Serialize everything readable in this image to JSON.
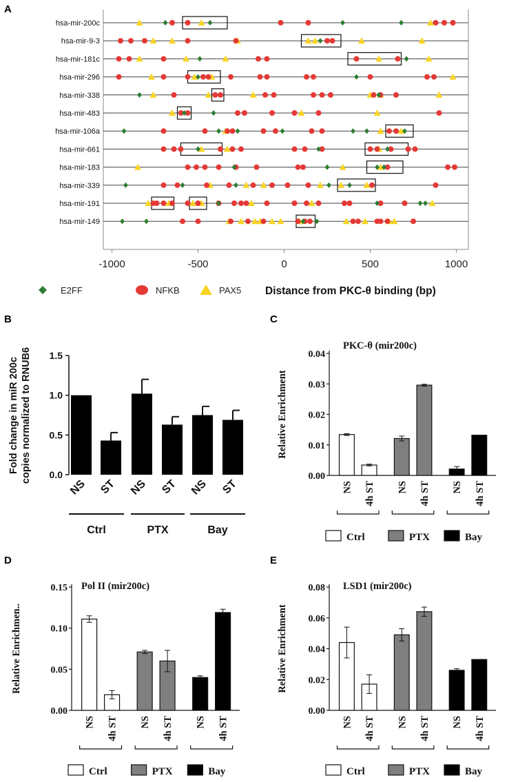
{
  "panels": {
    "A": "A",
    "B": "B",
    "C": "C",
    "D": "D",
    "E": "E"
  },
  "colors": {
    "E2FF": "#2e7d32",
    "NFKB": "#e53935",
    "PAX5": "#f9d423",
    "bar": "#000000",
    "Ctrl": "#ffffff",
    "PTX": "#7f7f7f",
    "Bay": "#000000"
  },
  "chart_data": [
    {
      "panel": "A",
      "type": "scatter",
      "xlabel": "Distance from PKC-θ binding (bp)",
      "xlim": [
        -1050,
        1070
      ],
      "xticks": [
        -1000,
        -500,
        0,
        500,
        1000
      ],
      "xtick_labels": [
        "-1000",
        "-500",
        "0",
        "500",
        "1000"
      ],
      "legend": [
        "E2FF",
        "NFKB",
        "PAX5"
      ],
      "rows": [
        {
          "name": "hsa-mir-200c",
          "E2FF": [
            -690,
            -430,
            340,
            680
          ],
          "NFKB": [
            -650,
            -560,
            -20,
            140,
            880,
            930,
            980
          ],
          "PAX5": [
            -840,
            -480,
            850
          ],
          "boxes": [
            [
              -590,
              -330
            ]
          ]
        },
        {
          "name": "hsa-mir-9-3",
          "E2FF": [
            210
          ],
          "NFKB": [
            -950,
            -890,
            -810,
            -560,
            -280,
            250,
            280
          ],
          "PAX5": [
            -760,
            -650,
            -270,
            140,
            180,
            450,
            800
          ],
          "boxes": [
            [
              100,
              330
            ]
          ]
        },
        {
          "name": "hsa-mir-181c",
          "E2FF": [
            -490,
            710
          ],
          "NFKB": [
            -960,
            -900,
            -700,
            -150,
            -100,
            420,
            660
          ],
          "PAX5": [
            -840,
            -570,
            -340,
            550,
            840
          ],
          "boxes": [
            [
              370,
              680
            ]
          ]
        },
        {
          "name": "hsa-mir-296",
          "E2FF": [
            -500,
            420
          ],
          "NFKB": [
            -960,
            -700,
            -560,
            -470,
            -440,
            -310,
            -140,
            -100,
            130,
            170,
            500,
            830,
            870
          ],
          "PAX5": [
            -770,
            -520,
            -420,
            980
          ],
          "boxes": [
            [
              -560,
              -370
            ]
          ]
        },
        {
          "name": "hsa-mir-338",
          "E2FF": [
            -840,
            550
          ],
          "NFKB": [
            -640,
            -400,
            -370,
            -110,
            -60,
            170,
            220,
            270,
            520,
            560,
            650
          ],
          "PAX5": [
            -760,
            -440,
            -180,
            500,
            560,
            900
          ],
          "boxes": [
            [
              -420,
              -350
            ]
          ]
        },
        {
          "name": "hsa-mir-483",
          "E2FF": [
            -580,
            -410
          ],
          "NFKB": [
            -600,
            -560,
            -270,
            -230,
            -70,
            60,
            200,
            900
          ],
          "PAX5": [
            -650,
            100,
            540
          ],
          "boxes": [
            [
              -620,
              -540
            ]
          ]
        },
        {
          "name": "hsa-mir-106a",
          "E2FF": [
            -930,
            -380,
            -270,
            -10,
            400,
            480,
            700
          ],
          "NFKB": [
            -700,
            -460,
            -330,
            -300,
            -120,
            -50,
            160,
            220,
            610,
            650
          ],
          "PAX5": [
            -340,
            560,
            680
          ],
          "boxes": [
            [
              590,
              750
            ]
          ]
        },
        {
          "name": "hsa-mir-661",
          "E2FF": [
            -500,
            200,
            600
          ],
          "NFKB": [
            -700,
            -640,
            -600,
            -370,
            -300,
            -250,
            60,
            120,
            220,
            500,
            540,
            620,
            720,
            760
          ],
          "PAX5": [
            -480,
            -330,
            550
          ],
          "boxes": [
            [
              -600,
              -360
            ],
            [
              470,
              720
            ]
          ]
        },
        {
          "name": "hsa-mir-183",
          "E2FF": [
            -290,
            250,
            540,
            580
          ],
          "NFKB": [
            -560,
            -510,
            -460,
            -380,
            -280,
            -160,
            80,
            110,
            600,
            950,
            990
          ],
          "PAX5": [
            -850,
            340,
            560
          ],
          "boxes": [
            [
              480,
              690
            ]
          ]
        },
        {
          "name": "hsa-mir-339",
          "E2FF": [
            -920,
            -590,
            -280,
            260,
            380
          ],
          "NFKB": [
            -700,
            -620,
            -450,
            -320,
            -180,
            -70,
            20,
            140,
            510,
            880
          ],
          "PAX5": [
            -430,
            -220,
            -120,
            210,
            330,
            480
          ],
          "boxes": [
            [
              310,
              530
            ]
          ]
        },
        {
          "name": "hsa-mir-191",
          "E2FF": [
            -380,
            540,
            790,
            820
          ],
          "NFKB": [
            -760,
            -740,
            -700,
            -650,
            -560,
            -500,
            -380,
            -290,
            -250,
            -220,
            -100,
            60,
            130,
            200,
            350,
            380,
            560,
            700
          ],
          "PAX5": [
            -790,
            -670,
            -530,
            -480,
            -190,
            160,
            860
          ],
          "boxes": [
            [
              -770,
              -640
            ],
            [
              -550,
              -450
            ]
          ]
        },
        {
          "name": "hsa-mir-149",
          "E2FF": [
            -940,
            -800,
            110,
            190
          ],
          "NFKB": [
            -590,
            -500,
            -310,
            -210,
            -120,
            80,
            120,
            150,
            400,
            430,
            540,
            560,
            600,
            750
          ],
          "PAX5": [
            -320,
            -250,
            -170,
            -140,
            -70,
            -20,
            90,
            360,
            470,
            610,
            640
          ],
          "boxes": [
            [
              70,
              180
            ]
          ]
        }
      ]
    },
    {
      "panel": "B",
      "type": "bar",
      "ylabel_lines": [
        "Fold change in miR 200c",
        "copies normalized to RNUB6"
      ],
      "ylim": [
        0,
        1.5
      ],
      "yticks": [
        "0.0",
        "0.5",
        "1.0",
        "1.5"
      ],
      "categories": [
        "NS",
        "ST",
        "NS",
        "ST",
        "NS",
        "ST"
      ],
      "values": [
        1.0,
        0.43,
        1.02,
        0.63,
        0.75,
        0.69
      ],
      "errors": [
        0,
        0.1,
        0.18,
        0.1,
        0.11,
        0.12
      ],
      "groups": [
        "Ctrl",
        "PTX",
        "Bay"
      ]
    },
    {
      "panel": "C",
      "type": "bar",
      "title": "PKC-θ (mir200c)",
      "ylabel": "Relative Enrichment",
      "ylim": [
        0,
        0.04
      ],
      "yticks": [
        "0.00",
        "0.01",
        "0.02",
        "0.03",
        "0.04"
      ],
      "categories": [
        "NS",
        "4h ST",
        "NS",
        "4h ST",
        "NS",
        "4h ST"
      ],
      "values": [
        0.0134,
        0.0034,
        0.0121,
        0.0296,
        0.0021,
        0.0132
      ],
      "errors": [
        0.0003,
        0.0003,
        0.0008,
        0.0003,
        0.0008,
        0
      ],
      "groups": [
        "Ctrl",
        "PTX",
        "Bay"
      ]
    },
    {
      "panel": "D",
      "type": "bar",
      "title": "Pol II (mir200c)",
      "ylabel": "Relative Enrichmen..",
      "ylim": [
        0,
        0.15
      ],
      "yticks": [
        "0.00",
        "0.05",
        "0.10",
        "0.15"
      ],
      "categories": [
        "NS",
        "4h ST",
        "NS",
        "4h ST",
        "NS",
        "4h ST"
      ],
      "values": [
        0.111,
        0.019,
        0.071,
        0.06,
        0.04,
        0.119
      ],
      "errors": [
        0.004,
        0.005,
        0.002,
        0.013,
        0.002,
        0.004
      ],
      "groups": [
        "Ctrl",
        "PTX",
        "Bay"
      ]
    },
    {
      "panel": "E",
      "type": "bar",
      "title": "LSD1 (mir200c)",
      "ylabel": "Relative Enrichment",
      "ylim": [
        0,
        0.08
      ],
      "yticks": [
        "0.00",
        "0.02",
        "0.04",
        "0.06",
        "0.08"
      ],
      "categories": [
        "NS",
        "4h ST",
        "NS",
        "4h ST",
        "NS",
        "4h ST"
      ],
      "values": [
        0.044,
        0.017,
        0.049,
        0.064,
        0.026,
        0.033
      ],
      "errors": [
        0.01,
        0.006,
        0.004,
        0.003,
        0.001,
        0
      ],
      "groups": [
        "Ctrl",
        "PTX",
        "Bay"
      ]
    }
  ]
}
